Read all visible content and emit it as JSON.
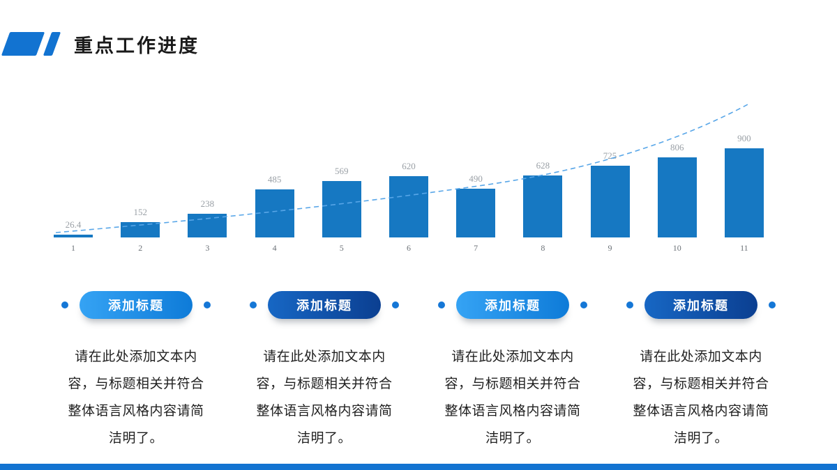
{
  "slide": {
    "title": "重点工作进度"
  },
  "chart_data": {
    "type": "bar",
    "categories": [
      "1",
      "2",
      "3",
      "4",
      "5",
      "6",
      "7",
      "8",
      "9",
      "10",
      "11"
    ],
    "values": [
      26.4,
      152,
      238,
      485,
      569,
      620,
      490,
      628,
      725,
      806,
      900
    ],
    "value_labels": [
      "26.4",
      "152",
      "238",
      "485",
      "569",
      "620",
      "490",
      "628",
      "725",
      "806",
      "900"
    ],
    "title": "",
    "xlabel": "",
    "ylabel": "",
    "ylim": [
      0,
      900
    ],
    "grid": false,
    "legend": false,
    "bar_color": "#1678C2",
    "trend_line": {
      "style": "dashed",
      "color": "#58A6E8",
      "shape": "rising-exponential"
    },
    "value_label_color": "#9aa0a6",
    "axis_label_color": "#6b7177"
  },
  "columns": [
    {
      "label": "添加标题",
      "variant": "bright",
      "text": "请在此处添加文本内容，与标题相关并符合整体语言风格内容请简洁明了。"
    },
    {
      "label": "添加标题",
      "variant": "dark",
      "text": "请在此处添加文本内容，与标题相关并符合整体语言风格内容请简洁明了。"
    },
    {
      "label": "添加标题",
      "variant": "bright",
      "text": "请在此处添加文本内容，与标题相关并符合整体语言风格内容请简洁明了。"
    },
    {
      "label": "添加标题",
      "variant": "dark",
      "text": "请在此处添加文本内容，与标题相关并符合整体语言风格内容请简洁明了。"
    }
  ],
  "colors": {
    "header_accent": "#1273D1",
    "footer_bar": "#1273D1",
    "dot": "#1577D6",
    "pill_bright_start": "#35A3F4",
    "pill_bright_end": "#0E7BD8",
    "pill_dark_start": "#1767C4",
    "pill_dark_end": "#0B3F91"
  }
}
